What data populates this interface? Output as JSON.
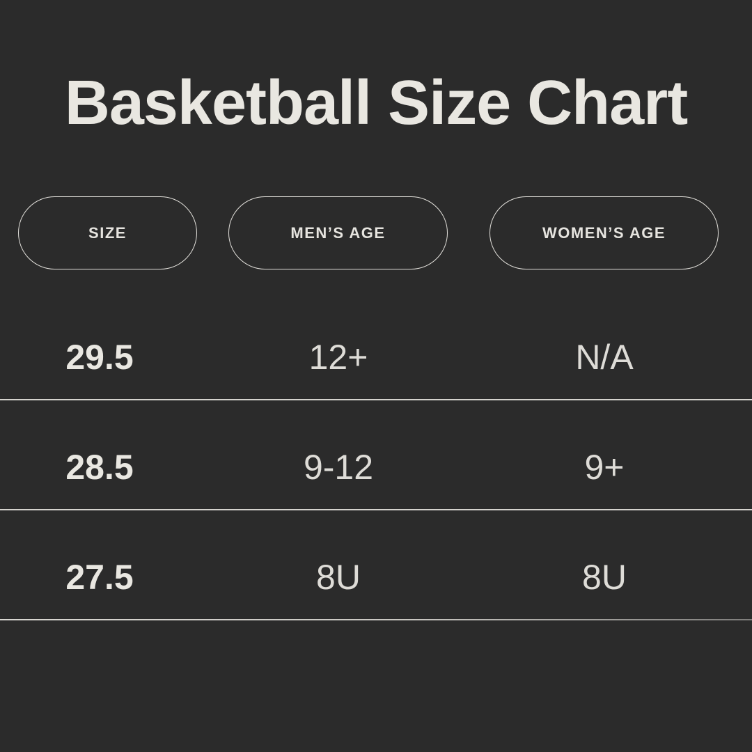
{
  "page": {
    "title": "Basketball Size Chart"
  },
  "theme": {
    "background": "#2b2b2b",
    "title_text": "#e9e7e1",
    "secondary_text": "#dedcd7",
    "pill_border": "#e3e1dc",
    "divider": "#d5d3ce",
    "divider_fade": "#7e7d7b"
  },
  "table": {
    "columns": [
      {
        "label": "SIZE"
      },
      {
        "label": "MEN’S AGE"
      },
      {
        "label": "WOMEN’S AGE"
      }
    ],
    "rows": [
      {
        "size": "29.5",
        "mens_age": "12+",
        "womens_age": "N/A"
      },
      {
        "size": "28.5",
        "mens_age": "9-12",
        "womens_age": "9+"
      },
      {
        "size": "27.5",
        "mens_age": "8U",
        "womens_age": "8U"
      }
    ]
  },
  "chart_data": {
    "type": "table",
    "title": "Basketball Size Chart",
    "columns": [
      "SIZE",
      "MEN’S AGE",
      "WOMEN’S AGE"
    ],
    "rows": [
      [
        "29.5",
        "12+",
        "N/A"
      ],
      [
        "28.5",
        "9-12",
        "9+"
      ],
      [
        "27.5",
        "8U",
        "8U"
      ]
    ]
  }
}
